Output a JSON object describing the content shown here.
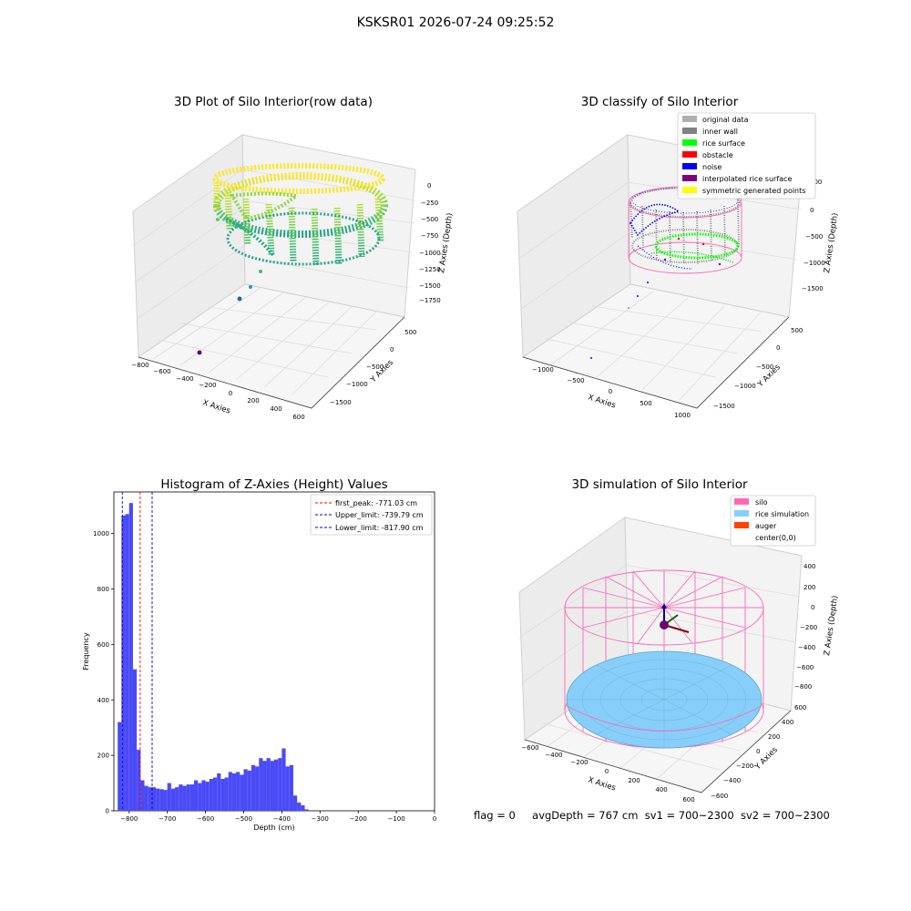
{
  "figure": {
    "suptitle": "KSKSR01 2026-07-24 09:25:52"
  },
  "colors": {
    "background": "#ffffff",
    "pane_gray": "#f2f2f2",
    "histogram_bar": "#4a4af7",
    "first_peak_line": "#ff0000",
    "limit_line": "#0000cc",
    "silo_pink": "#ff69b4",
    "rice_blue": "#87cefa",
    "auger_orange": "#ff4500"
  },
  "panels": {
    "raw": {
      "title": "3D Plot of Silo Interior(row data)",
      "x_label": "X Axies",
      "y_label": "Y Axies",
      "z_label": "Z Axies (Depth)",
      "x_ticks": [
        "−800",
        "−600",
        "−400",
        "−200",
        "0",
        "200",
        "400",
        "600"
      ],
      "y_ticks": [
        "500",
        "0",
        "−500",
        "−1000",
        "−1500"
      ],
      "z_ticks": [
        "0",
        "−250",
        "−500",
        "−750",
        "−1000",
        "−1250",
        "−1500",
        "−1750"
      ],
      "colormap": "viridis"
    },
    "classify": {
      "title": "3D classify of Silo Interior",
      "x_label": "X Axies",
      "y_label": "Y Axies",
      "z_label": "Z Axies (Depth)",
      "x_ticks": [
        "−1000",
        "−500",
        "0",
        "500",
        "1000"
      ],
      "y_ticks": [
        "500",
        "0",
        "−500",
        "−1000",
        "−1500"
      ],
      "z_ticks": [
        "500",
        "0",
        "−500",
        "−1000",
        "−1500"
      ],
      "legend": [
        {
          "label": "original data",
          "color": "#b0b0b0"
        },
        {
          "label": "inner wall",
          "color": "#808080"
        },
        {
          "label": "rice surface",
          "color": "#00ff00"
        },
        {
          "label": "obstacle",
          "color": "#ff0000"
        },
        {
          "label": "noise",
          "color": "#0000ff"
        },
        {
          "label": "interpolated rice surface",
          "color": "#800080"
        },
        {
          "label": "symmetric generated points",
          "color": "#ffff00"
        }
      ]
    },
    "histogram": {
      "title": "Histogram of Z-Axies (Height) Values",
      "x_label": "Depth (cm)",
      "y_label": "Frequency",
      "legend": [
        {
          "label": "first_peak: -771.03 cm",
          "color": "#ff0000"
        },
        {
          "label": "Upper_limit: -739.79 cm",
          "color": "#0000cc"
        },
        {
          "label": "Lower_limit: -817.90 cm",
          "color": "#0000cc"
        }
      ]
    },
    "simulation": {
      "title": "3D simulation of Silo Interior",
      "x_label": "X Axies",
      "y_label": "Y Axies",
      "z_label": "Z Axies (Depth)",
      "x_ticks": [
        "−600",
        "−400",
        "−200",
        "0",
        "200",
        "400",
        "600"
      ],
      "y_ticks": [
        "600",
        "400",
        "200",
        "0",
        "−200",
        "−400",
        "−600"
      ],
      "z_ticks": [
        "400",
        "200",
        "0",
        "−200",
        "−400",
        "−600",
        "−800"
      ],
      "legend": [
        {
          "label": "silo",
          "color": "#ff69b4"
        },
        {
          "label": "rice simulation",
          "color": "#87cefa"
        },
        {
          "label": "auger",
          "color": "#ff4500"
        },
        {
          "label": "center(0,0)",
          "color": ""
        }
      ]
    }
  },
  "status": {
    "flag": "flag = 0",
    "avg_depth": "avgDepth = 767 cm",
    "sv1": "sv1 = 700~2300",
    "sv2": "sv2 = 700~2300"
  },
  "chart_data": [
    {
      "type": "scatter",
      "title": "3D Plot of Silo Interior(row data)",
      "xlabel": "X Axies",
      "ylabel": "Y Axies",
      "zlabel": "Z Axies (Depth)",
      "xlim": [
        -800,
        600
      ],
      "ylim": [
        -1500,
        500
      ],
      "zlim": [
        -1750,
        0
      ]
    },
    {
      "type": "scatter",
      "title": "3D classify of Silo Interior",
      "xlabel": "X Axies",
      "ylabel": "Y Axies",
      "zlabel": "Z Axies (Depth)",
      "xlim": [
        -1000,
        1000
      ],
      "ylim": [
        -1500,
        500
      ],
      "zlim": [
        -1500,
        500
      ],
      "series": [
        {
          "name": "original data"
        },
        {
          "name": "inner wall"
        },
        {
          "name": "rice surface"
        },
        {
          "name": "obstacle"
        },
        {
          "name": "noise"
        },
        {
          "name": "interpolated rice surface"
        },
        {
          "name": "symmetric generated points"
        }
      ]
    },
    {
      "type": "bar",
      "title": "Histogram of Z-Axies (Height) Values",
      "xlabel": "Depth (cm)",
      "ylabel": "Frequency",
      "xlim": [
        -840,
        0
      ],
      "ylim": [
        0,
        1150
      ],
      "x_ticks": [
        -800,
        -700,
        -600,
        -500,
        -400,
        -300,
        -200,
        -100,
        0
      ],
      "y_ticks": [
        0,
        200,
        400,
        600,
        800,
        1000
      ],
      "bin_width": 10,
      "bin_start": -830,
      "values": [
        320,
        1065,
        1070,
        1110,
        510,
        220,
        110,
        90,
        85,
        85,
        80,
        78,
        75,
        100,
        80,
        85,
        95,
        90,
        95,
        95,
        110,
        100,
        110,
        105,
        115,
        120,
        135,
        115,
        120,
        140,
        135,
        140,
        130,
        150,
        145,
        165,
        160,
        190,
        180,
        190,
        180,
        185,
        190,
        225,
        160,
        165,
        55,
        30,
        20,
        5
      ],
      "vlines": [
        {
          "name": "first_peak",
          "x": -771.03
        },
        {
          "name": "Upper_limit",
          "x": -739.79
        },
        {
          "name": "Lower_limit",
          "x": -817.9
        }
      ]
    },
    {
      "type": "scatter",
      "title": "3D simulation of Silo Interior",
      "xlabel": "X Axies",
      "ylabel": "Y Axies",
      "zlabel": "Z Axies (Depth)",
      "xlim": [
        -600,
        600
      ],
      "ylim": [
        -600,
        600
      ],
      "zlim": [
        -800,
        400
      ],
      "series": [
        {
          "name": "silo"
        },
        {
          "name": "rice simulation"
        },
        {
          "name": "auger"
        },
        {
          "name": "center(0,0)"
        }
      ]
    }
  ]
}
